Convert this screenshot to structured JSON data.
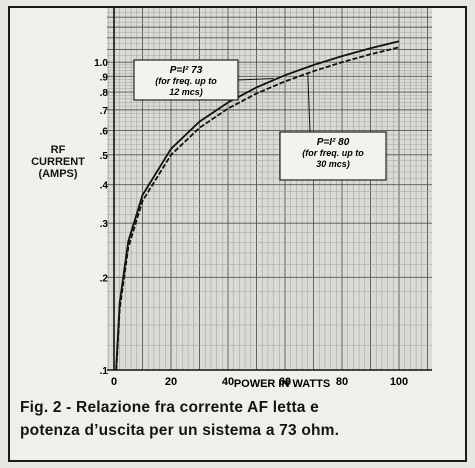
{
  "chart_data": {
    "type": "line",
    "xlabel": "POWER IN WATTS",
    "ylabel": [
      "RF",
      "CURRENT",
      "(AMPS)"
    ],
    "xlim": [
      0,
      110
    ],
    "ylim": [
      0.1,
      1.5
    ],
    "y_scale": "log",
    "grid": true,
    "x_ticks": [
      0,
      20,
      40,
      60,
      80,
      100
    ],
    "x_tick_labels": [
      "0",
      "20",
      "40",
      "60",
      "80",
      "100"
    ],
    "y_ticks": [
      0.1,
      0.2,
      0.3,
      0.4,
      0.5,
      0.6,
      0.7,
      0.8,
      0.9,
      1.0
    ],
    "y_tick_labels": [
      ".1",
      ".2",
      ".3",
      ".4",
      ".5",
      ".6",
      ".7",
      ".8",
      ".9",
      "1.0"
    ],
    "series": [
      {
        "formula_label": "P=I² 73",
        "note": [
          "(for freq. up to",
          "12 mcs)"
        ],
        "x": [
          0.75,
          2,
          5,
          10,
          20,
          30,
          40,
          50,
          60,
          70,
          80,
          90,
          100
        ],
        "y": [
          0.1,
          0.166,
          0.262,
          0.37,
          0.523,
          0.641,
          0.74,
          0.828,
          0.907,
          0.979,
          1.047,
          1.11,
          1.17
        ]
      },
      {
        "formula_label": "P=I² 80",
        "note": [
          "(for freq. up to",
          "30 mcs)"
        ],
        "x": [
          0.8,
          2,
          5,
          10,
          20,
          30,
          40,
          50,
          60,
          70,
          80,
          90,
          100
        ],
        "y": [
          0.1,
          0.158,
          0.25,
          0.354,
          0.5,
          0.612,
          0.707,
          0.791,
          0.866,
          0.935,
          1.0,
          1.061,
          1.118
        ]
      }
    ]
  },
  "caption": {
    "line1": "Fig. 2 - Relazione fra corrente AF letta e",
    "line2": "potenza d’uscita per un sistema a 73 ohm."
  }
}
